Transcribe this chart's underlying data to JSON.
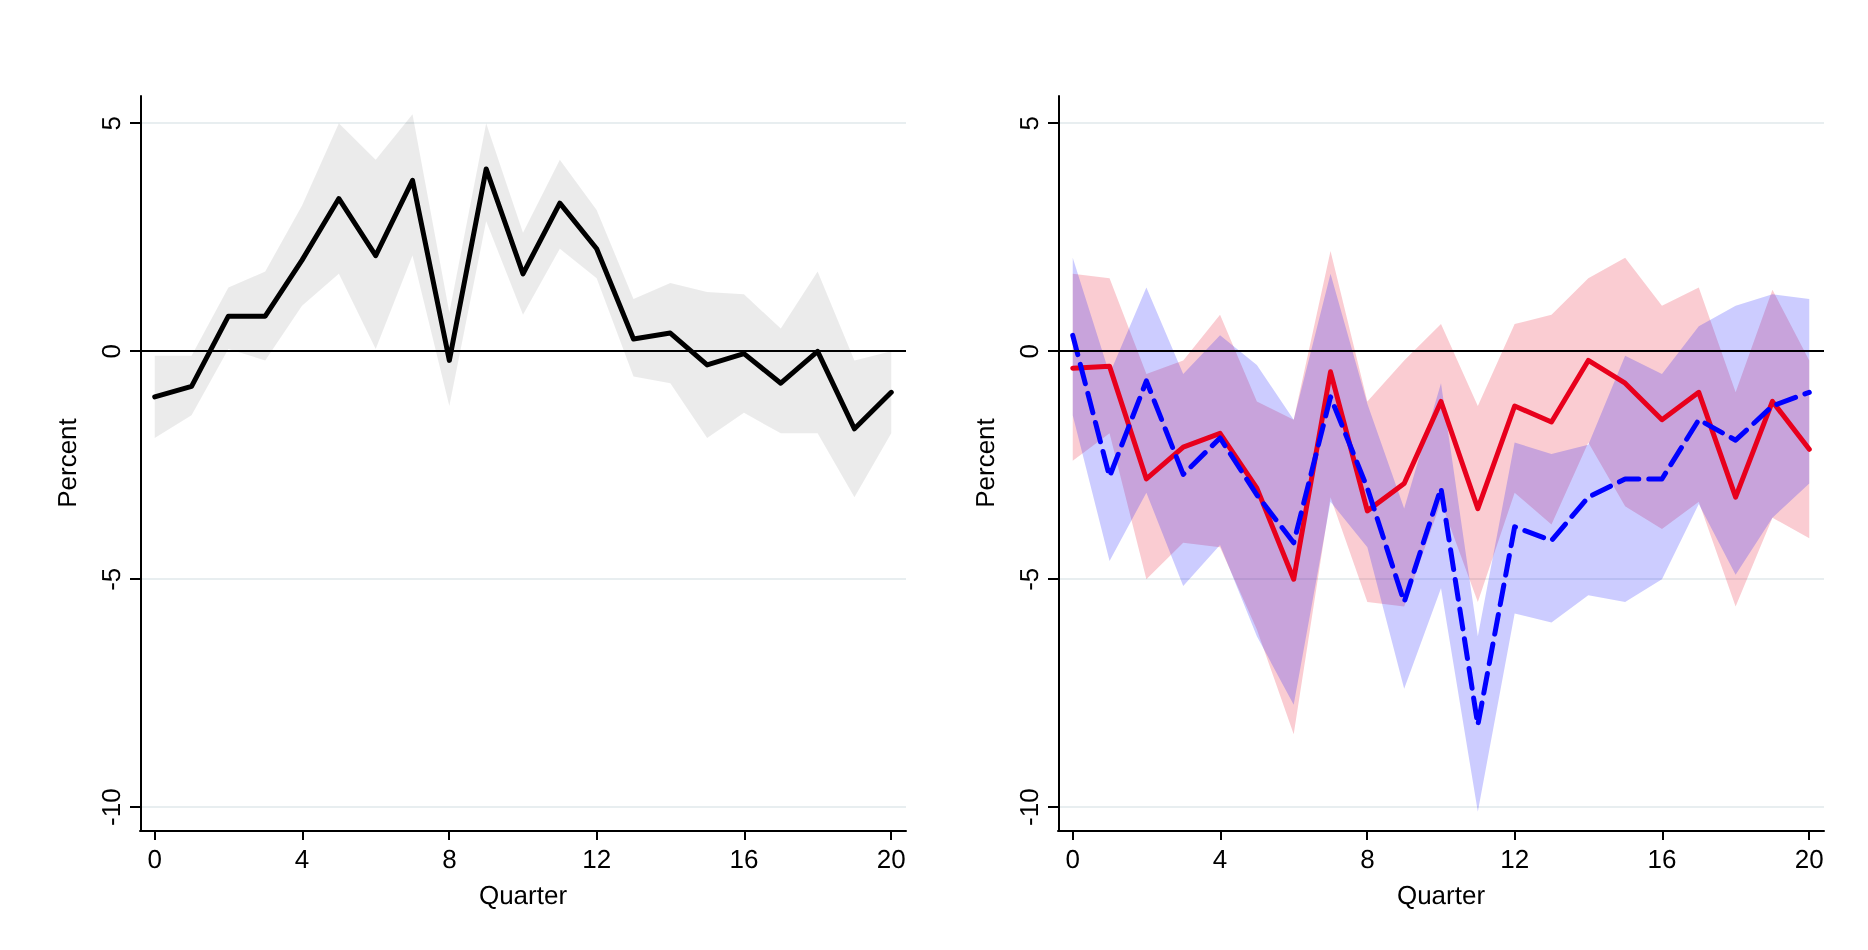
{
  "chart_data": [
    {
      "type": "line",
      "xlabel": "Quarter",
      "ylabel": "Percent",
      "x": [
        0,
        1,
        2,
        3,
        4,
        5,
        6,
        7,
        8,
        9,
        10,
        11,
        12,
        13,
        14,
        15,
        16,
        17,
        18,
        19,
        20
      ],
      "xlim": [
        -0.4,
        20.4
      ],
      "xticks": [
        0,
        4,
        8,
        12,
        16,
        20
      ],
      "ylim": [
        -10.5,
        5.6
      ],
      "yticks": [
        -10,
        -5,
        0,
        5
      ],
      "grid": "y",
      "ref_lines": [
        {
          "axis": "y",
          "value": 0,
          "color": "#000000"
        }
      ],
      "series": [
        {
          "color": "#000000",
          "line_style": "solid",
          "values": [
            -1.0,
            -0.77,
            0.77,
            0.77,
            2.0,
            3.35,
            2.1,
            3.75,
            -0.2,
            4.0,
            1.7,
            3.25,
            2.25,
            0.27,
            0.4,
            -0.3,
            -0.05,
            -0.7,
            0,
            -1.7,
            -0.9
          ],
          "upper": [
            -0.1,
            -0.1,
            1.4,
            1.75,
            3.2,
            5.0,
            4.2,
            5.2,
            0.85,
            5.0,
            2.6,
            4.2,
            3.1,
            1.15,
            1.5,
            1.3,
            1.25,
            0.5,
            1.75,
            -0.2,
            0
          ],
          "lower": [
            -1.9,
            -1.4,
            0.05,
            -0.2,
            1.0,
            1.7,
            0.05,
            2.1,
            -1.2,
            2.85,
            0.8,
            2.25,
            1.6,
            -0.55,
            -0.7,
            -1.9,
            -1.35,
            -1.8,
            -1.8,
            -3.2,
            -1.8
          ]
        }
      ]
    },
    {
      "type": "line",
      "xlabel": "Quarter",
      "ylabel": "Percent",
      "x": [
        0,
        1,
        2,
        3,
        4,
        5,
        6,
        7,
        8,
        9,
        10,
        11,
        12,
        13,
        14,
        15,
        16,
        17,
        18,
        19,
        20
      ],
      "xlim": [
        -0.4,
        20.4
      ],
      "xticks": [
        0,
        4,
        8,
        12,
        16,
        20
      ],
      "ylim": [
        -10.5,
        5.6
      ],
      "yticks": [
        -10,
        -5,
        0,
        5
      ],
      "grid": "y",
      "ref_lines": [
        {
          "axis": "y",
          "value": 0,
          "color": "#000000"
        }
      ],
      "series": [
        {
          "color": "#e8001c",
          "line_style": "solid",
          "values": [
            -0.37,
            -0.33,
            -2.8,
            -2.1,
            -1.8,
            -3.0,
            -5.0,
            -0.45,
            -3.5,
            -2.9,
            -1.1,
            -3.45,
            -1.2,
            -1.55,
            -0.2,
            -0.7,
            -1.5,
            -0.9,
            -3.2,
            -1.1,
            -2.15
          ],
          "upper": [
            1.7,
            1.6,
            -0.5,
            -0.2,
            0.8,
            -1.1,
            -1.5,
            2.2,
            -1.1,
            -0.2,
            0.6,
            -1.2,
            0.6,
            0.8,
            1.6,
            2.05,
            1.0,
            1.4,
            -0.9,
            1.35,
            -0.2
          ],
          "lower": [
            -2.4,
            -1.8,
            -5.0,
            -4.2,
            -4.3,
            -6.1,
            -8.4,
            -3.2,
            -5.5,
            -5.6,
            -3.3,
            -5.5,
            -3.1,
            -3.8,
            -2.0,
            -3.4,
            -3.9,
            -3.3,
            -5.6,
            -3.65,
            -4.1
          ]
        },
        {
          "color": "#0000ff",
          "line_style": "dashed",
          "values": [
            0.35,
            -2.75,
            -0.65,
            -2.7,
            -1.9,
            -3.15,
            -4.2,
            -1.0,
            -3.0,
            -5.5,
            -3.0,
            -8.2,
            -3.85,
            -4.15,
            -3.2,
            -2.8,
            -2.8,
            -1.5,
            -1.95,
            -1.2,
            -0.9
          ],
          "upper": [
            2.05,
            -0.5,
            1.4,
            -0.5,
            0.35,
            -0.3,
            -1.5,
            1.7,
            -1.15,
            -3.45,
            -0.7,
            -6.25,
            -2.0,
            -2.25,
            -2.05,
            -0.1,
            -0.5,
            0.55,
            1.0,
            1.25,
            1.15
          ],
          "lower": [
            -1.4,
            -4.6,
            -3.1,
            -5.15,
            -4.25,
            -6.25,
            -7.75,
            -3.3,
            -4.3,
            -7.4,
            -5.2,
            -10.1,
            -5.75,
            -5.95,
            -5.35,
            -5.5,
            -5.0,
            -3.35,
            -4.9,
            -3.65,
            -2.9
          ]
        }
      ]
    }
  ]
}
